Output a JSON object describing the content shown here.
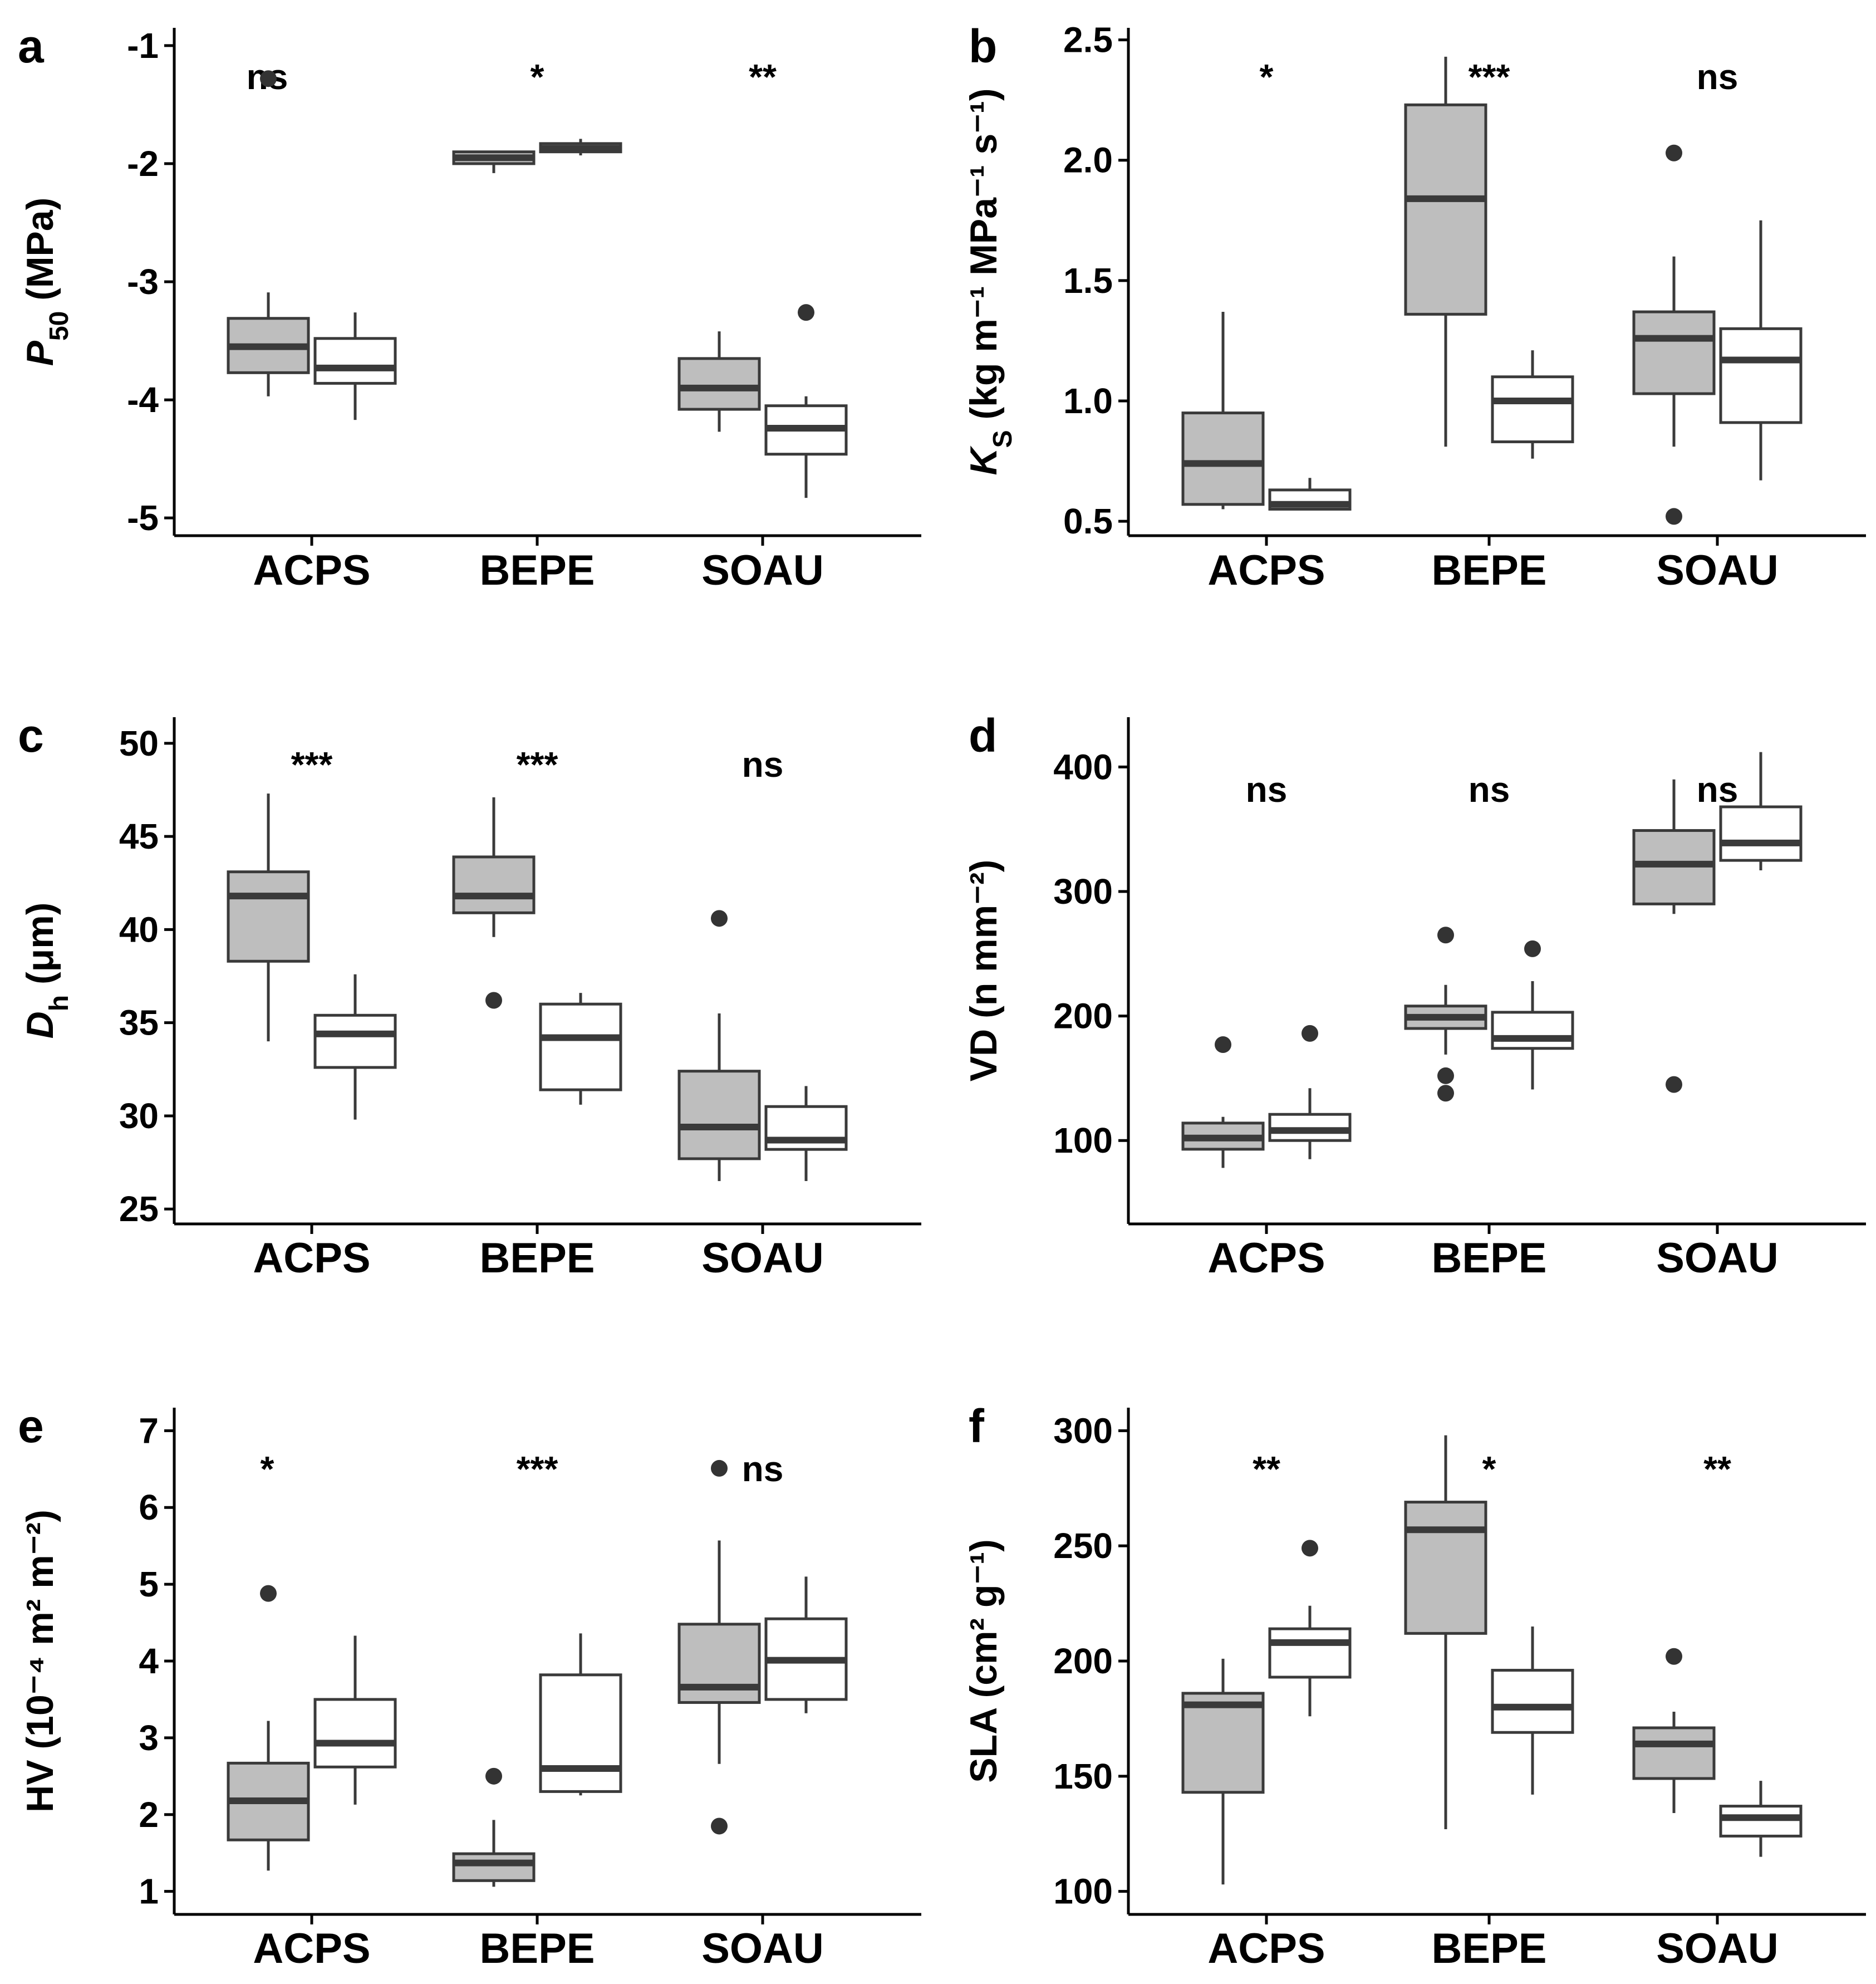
{
  "legend": {
    "groups": [
      "shaded",
      "open"
    ],
    "fill_colors": [
      "#bebebe",
      "#ffffff"
    ],
    "line_color": "#3a3a3a"
  },
  "chart_data": [
    {
      "type": "box",
      "panel": "a",
      "ylabel": {
        "main": "P",
        "sub": "50",
        "rest": " (MPa)"
      },
      "ylim": [
        -5.15,
        -0.85
      ],
      "yticks": [
        -1,
        -2,
        -3,
        -4,
        -5
      ],
      "ytick_labels": [
        "-1",
        "-2",
        "-3",
        "-4",
        "-5"
      ],
      "categories": [
        "ACPS",
        "BEPE",
        "SOAU"
      ],
      "significance": [
        "ns",
        "*",
        "**"
      ],
      "boxes": [
        [
          {
            "min": -3.97,
            "q1": -3.77,
            "median": -3.55,
            "q3": -3.31,
            "max": -3.09,
            "outliers": [
              -1.28
            ]
          },
          {
            "min": -4.17,
            "q1": -3.86,
            "median": -3.73,
            "q3": -3.48,
            "max": -3.26,
            "outliers": []
          }
        ],
        [
          {
            "min": -2.08,
            "q1": -2.0,
            "median": -1.95,
            "q3": -1.9,
            "max": -1.9,
            "outliers": []
          },
          {
            "min": -1.93,
            "q1": -1.9,
            "median": -1.87,
            "q3": -1.83,
            "max": -1.79,
            "outliers": []
          }
        ],
        [
          {
            "min": -4.27,
            "q1": -4.08,
            "median": -3.9,
            "q3": -3.65,
            "max": -3.42,
            "outliers": []
          },
          {
            "min": -4.83,
            "q1": -4.46,
            "median": -4.24,
            "q3": -4.05,
            "max": -3.97,
            "outliers": [
              -3.26
            ]
          }
        ]
      ]
    },
    {
      "type": "box",
      "panel": "b",
      "ylabel": {
        "main": "K",
        "sub": "S",
        "rest": " (kg m⁻¹ MPa⁻¹ s⁻¹)"
      },
      "ylim": [
        0.44,
        2.55
      ],
      "yticks": [
        0.5,
        1.0,
        1.5,
        2.0,
        2.5
      ],
      "ytick_labels": [
        "0.5",
        "1.0",
        "1.5",
        "2.0",
        "2.5"
      ],
      "categories": [
        "ACPS",
        "BEPE",
        "SOAU"
      ],
      "significance": [
        "*",
        "***",
        "ns"
      ],
      "boxes": [
        [
          {
            "min": 0.55,
            "q1": 0.57,
            "median": 0.74,
            "q3": 0.95,
            "max": 1.37,
            "outliers": []
          },
          {
            "min": 0.55,
            "q1": 0.55,
            "median": 0.57,
            "q3": 0.63,
            "max": 0.68,
            "outliers": []
          }
        ],
        [
          {
            "min": 0.81,
            "q1": 1.36,
            "median": 1.84,
            "q3": 2.23,
            "max": 2.43,
            "outliers": []
          },
          {
            "min": 0.76,
            "q1": 0.83,
            "median": 1.0,
            "q3": 1.1,
            "max": 1.21,
            "outliers": []
          }
        ],
        [
          {
            "min": 0.81,
            "q1": 1.03,
            "median": 1.26,
            "q3": 1.37,
            "max": 1.6,
            "outliers": [
              2.03,
              0.52
            ]
          },
          {
            "min": 0.67,
            "q1": 0.91,
            "median": 1.17,
            "q3": 1.3,
            "max": 1.75,
            "outliers": []
          }
        ]
      ]
    },
    {
      "type": "box",
      "panel": "c",
      "ylabel": {
        "main": "D",
        "sub": "h",
        "rest": " (μm)"
      },
      "ylim": [
        24.2,
        51.4
      ],
      "yticks": [
        25,
        30,
        35,
        40,
        45,
        50
      ],
      "ytick_labels": [
        "25",
        "30",
        "35",
        "40",
        "45",
        "50"
      ],
      "categories": [
        "ACPS",
        "BEPE",
        "SOAU"
      ],
      "significance": [
        "***",
        "***",
        "ns"
      ],
      "boxes": [
        [
          {
            "min": 34.0,
            "q1": 38.3,
            "median": 41.8,
            "q3": 43.1,
            "max": 47.3,
            "outliers": []
          },
          {
            "min": 29.8,
            "q1": 32.6,
            "median": 34.4,
            "q3": 35.4,
            "max": 37.6,
            "outliers": []
          }
        ],
        [
          {
            "min": 39.6,
            "q1": 40.9,
            "median": 41.8,
            "q3": 43.9,
            "max": 47.1,
            "outliers": [
              36.2
            ]
          },
          {
            "min": 30.6,
            "q1": 31.4,
            "median": 34.2,
            "q3": 36.0,
            "max": 36.6,
            "outliers": []
          }
        ],
        [
          {
            "min": 26.5,
            "q1": 27.7,
            "median": 29.4,
            "q3": 32.4,
            "max": 35.5,
            "outliers": [
              40.6
            ]
          },
          {
            "min": 26.5,
            "q1": 28.2,
            "median": 28.7,
            "q3": 30.5,
            "max": 31.6,
            "outliers": []
          }
        ]
      ]
    },
    {
      "type": "box",
      "panel": "d",
      "ylabel": {
        "main": "VD",
        "sub": "",
        "rest": " (n mm⁻²)"
      },
      "ylim": [
        33,
        440
      ],
      "yticks": [
        100,
        200,
        300,
        400
      ],
      "ytick_labels": [
        "100",
        "200",
        "300",
        "400"
      ],
      "categories": [
        "ACPS",
        "BEPE",
        "SOAU"
      ],
      "significance": [
        "ns",
        "ns",
        "ns"
      ],
      "boxes": [
        [
          {
            "min": 78,
            "q1": 93,
            "median": 102,
            "q3": 114,
            "max": 119,
            "outliers": [
              177
            ]
          },
          {
            "min": 85,
            "q1": 100,
            "median": 108,
            "q3": 121,
            "max": 142,
            "outliers": [
              186
            ]
          }
        ],
        [
          {
            "min": 169,
            "q1": 190,
            "median": 199,
            "q3": 208,
            "max": 225,
            "outliers": [
              265,
              152,
              138
            ]
          },
          {
            "min": 141,
            "q1": 174,
            "median": 182,
            "q3": 203,
            "max": 228,
            "outliers": [
              254
            ]
          }
        ],
        [
          {
            "min": 282,
            "q1": 290,
            "median": 322,
            "q3": 349,
            "max": 390,
            "outliers": [
              145
            ]
          },
          {
            "min": 317,
            "q1": 325,
            "median": 339,
            "q3": 368,
            "max": 412,
            "outliers": []
          }
        ]
      ]
    },
    {
      "type": "box",
      "panel": "e",
      "ylabel": {
        "main": "HV",
        "sub": "",
        "rest": " (10⁻⁴ m² m⁻²)"
      },
      "ylim": [
        0.7,
        7.3
      ],
      "yticks": [
        1,
        2,
        3,
        4,
        5,
        6,
        7
      ],
      "ytick_labels": [
        "1",
        "2",
        "3",
        "4",
        "5",
        "6",
        "7"
      ],
      "categories": [
        "ACPS",
        "BEPE",
        "SOAU"
      ],
      "significance": [
        "*",
        "***",
        "ns"
      ],
      "boxes": [
        [
          {
            "min": 1.27,
            "q1": 1.67,
            "median": 2.18,
            "q3": 2.67,
            "max": 3.22,
            "outliers": [
              4.88
            ]
          },
          {
            "min": 2.13,
            "q1": 2.62,
            "median": 2.93,
            "q3": 3.5,
            "max": 4.33,
            "outliers": []
          }
        ],
        [
          {
            "min": 1.06,
            "q1": 1.14,
            "median": 1.37,
            "q3": 1.49,
            "max": 1.93,
            "outliers": [
              2.5
            ]
          },
          {
            "min": 2.25,
            "q1": 2.3,
            "median": 2.6,
            "q3": 3.82,
            "max": 4.36,
            "outliers": []
          }
        ],
        [
          {
            "min": 2.66,
            "q1": 3.46,
            "median": 3.66,
            "q3": 4.48,
            "max": 5.57,
            "outliers": [
              6.51,
              1.85
            ]
          },
          {
            "min": 3.32,
            "q1": 3.5,
            "median": 4.01,
            "q3": 4.55,
            "max": 5.1,
            "outliers": []
          }
        ]
      ]
    },
    {
      "type": "box",
      "panel": "f",
      "ylabel": {
        "main": "SLA",
        "sub": "",
        "rest": " (cm² g⁻¹)"
      },
      "ylim": [
        90,
        310
      ],
      "yticks": [
        100,
        150,
        200,
        250,
        300
      ],
      "ytick_labels": [
        "100",
        "150",
        "200",
        "250",
        "300"
      ],
      "categories": [
        "ACPS",
        "BEPE",
        "SOAU"
      ],
      "significance": [
        "**",
        "*",
        "**"
      ],
      "boxes": [
        [
          {
            "min": 103,
            "q1": 143,
            "median": 181,
            "q3": 186,
            "max": 201,
            "outliers": []
          },
          {
            "min": 176,
            "q1": 193,
            "median": 208,
            "q3": 214,
            "max": 224,
            "outliers": [
              249
            ]
          }
        ],
        [
          {
            "min": 127,
            "q1": 212,
            "median": 257,
            "q3": 269,
            "max": 298,
            "outliers": []
          },
          {
            "min": 142,
            "q1": 169,
            "median": 180,
            "q3": 196,
            "max": 215,
            "outliers": []
          }
        ],
        [
          {
            "min": 134,
            "q1": 149,
            "median": 164,
            "q3": 171,
            "max": 178,
            "outliers": [
              202
            ]
          },
          {
            "min": 115,
            "q1": 124,
            "median": 132,
            "q3": 137,
            "max": 148,
            "outliers": []
          }
        ]
      ]
    }
  ]
}
